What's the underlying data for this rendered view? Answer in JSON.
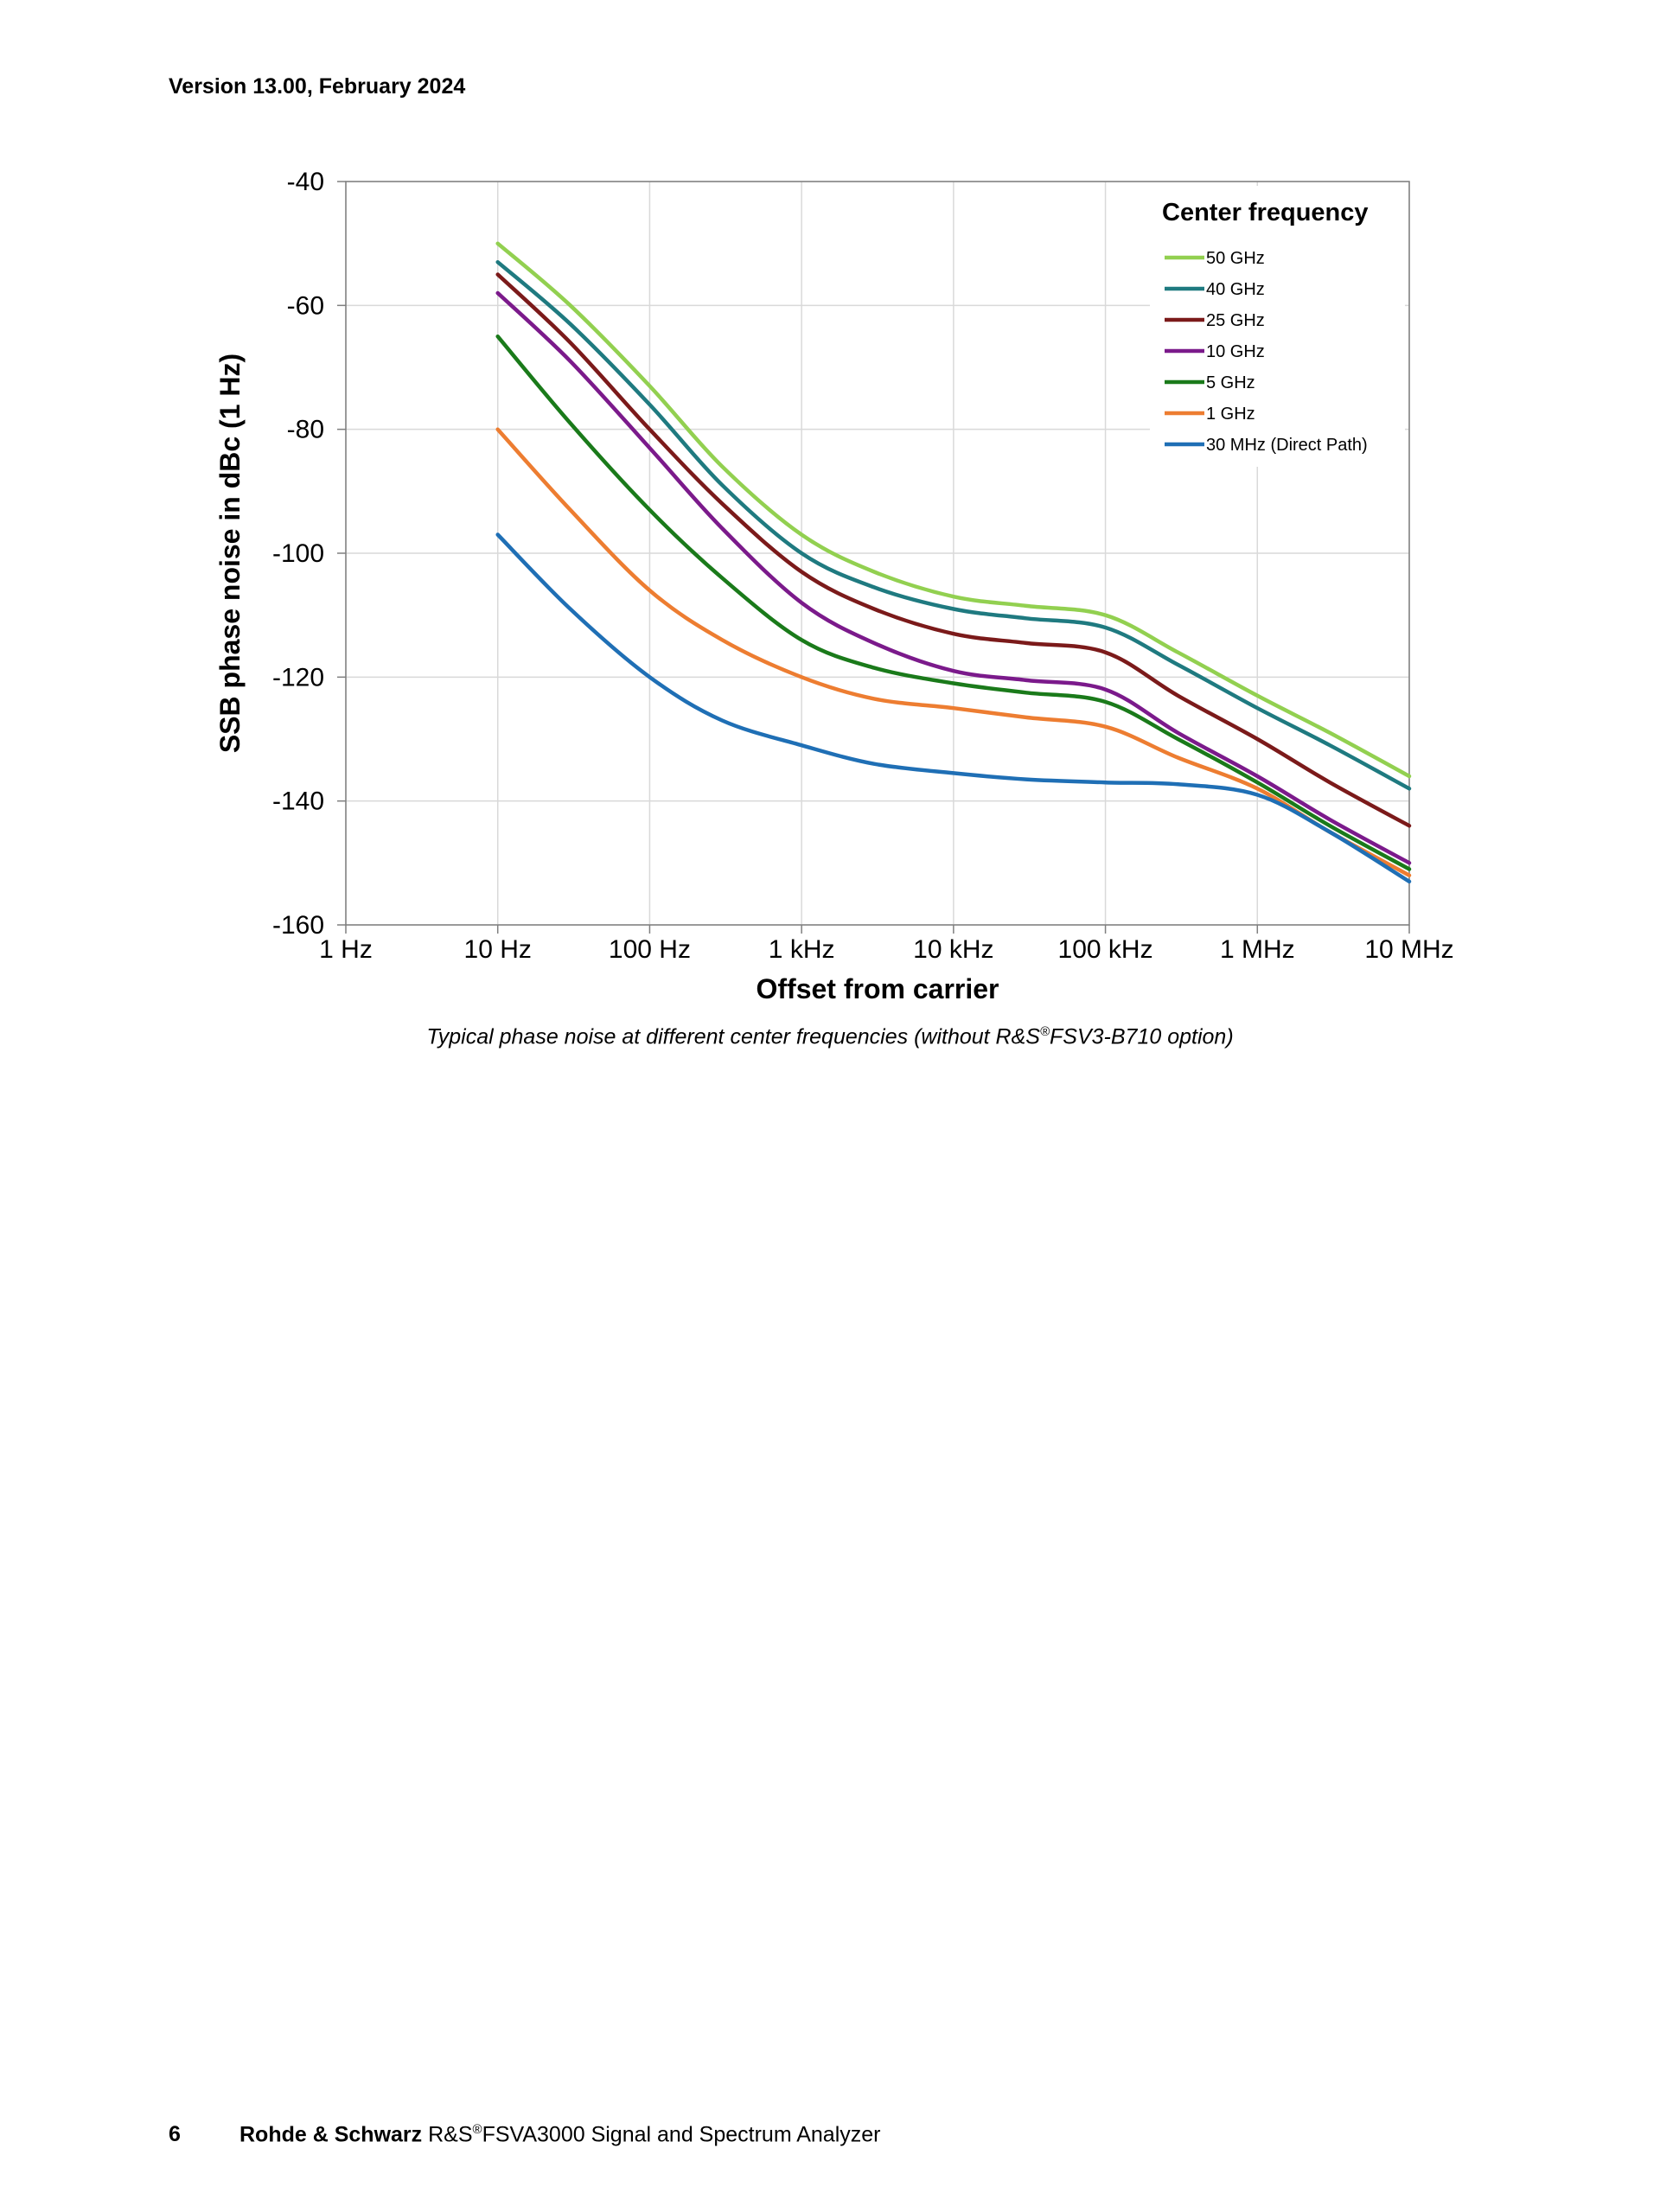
{
  "header": {
    "version": "Version 13.00, February 2024"
  },
  "chart_data": {
    "type": "line",
    "xscale": "log",
    "xlabel": "Offset from carrier",
    "ylabel": "SSB phase noise in dBc (1 Hz)",
    "xlim": [
      1,
      10000000
    ],
    "ylim": [
      -160,
      -40
    ],
    "x_ticks": [
      {
        "value": 1,
        "label": "1 Hz"
      },
      {
        "value": 10,
        "label": "10 Hz"
      },
      {
        "value": 100,
        "label": "100 Hz"
      },
      {
        "value": 1000,
        "label": "1 kHz"
      },
      {
        "value": 10000,
        "label": "10 kHz"
      },
      {
        "value": 100000,
        "label": "100 kHz"
      },
      {
        "value": 1000000,
        "label": "1 MHz"
      },
      {
        "value": 10000000,
        "label": "10 MHz"
      }
    ],
    "y_ticks": [
      {
        "value": -40,
        "label": "-40"
      },
      {
        "value": -60,
        "label": "-60"
      },
      {
        "value": -80,
        "label": "-80"
      },
      {
        "value": -100,
        "label": "-100"
      },
      {
        "value": -120,
        "label": "-120"
      },
      {
        "value": -140,
        "label": "-140"
      },
      {
        "value": -160,
        "label": "-160"
      }
    ],
    "grid": true,
    "legend": {
      "title": "Center frequency",
      "position": "top-right"
    },
    "series": [
      {
        "name": "50 GHz",
        "color": "#92d050",
        "x": [
          10,
          30,
          100,
          300,
          1000,
          3000,
          10000,
          30000,
          100000,
          300000,
          1000000,
          3000000,
          10000000
        ],
        "y": [
          -50,
          -60,
          -73,
          -86,
          -97,
          -103,
          -107,
          -108.5,
          -110,
          -116,
          -123,
          -129,
          -136
        ]
      },
      {
        "name": "40 GHz",
        "color": "#1f7a80",
        "x": [
          10,
          30,
          100,
          300,
          1000,
          3000,
          10000,
          30000,
          100000,
          300000,
          1000000,
          3000000,
          10000000
        ],
        "y": [
          -53,
          -63,
          -76,
          -89,
          -100,
          -105.5,
          -109,
          -110.5,
          -112,
          -118,
          -125,
          -131,
          -138
        ]
      },
      {
        "name": "25 GHz",
        "color": "#7b1a1a",
        "x": [
          10,
          30,
          100,
          300,
          1000,
          3000,
          10000,
          30000,
          100000,
          300000,
          1000000,
          3000000,
          10000000
        ],
        "y": [
          -55,
          -66,
          -80,
          -92,
          -103,
          -109,
          -113,
          -114.5,
          -116,
          -123,
          -130,
          -137,
          -144
        ]
      },
      {
        "name": "10 GHz",
        "color": "#7b1a8b",
        "x": [
          10,
          30,
          100,
          300,
          1000,
          3000,
          10000,
          30000,
          100000,
          300000,
          1000000,
          3000000,
          10000000
        ],
        "y": [
          -58,
          -69,
          -83,
          -96,
          -108,
          -114.5,
          -119,
          -120.5,
          -122,
          -129,
          -136,
          -143,
          -150
        ]
      },
      {
        "name": "5 GHz",
        "color": "#1a7a1a",
        "x": [
          10,
          30,
          100,
          300,
          1000,
          3000,
          10000,
          30000,
          100000,
          300000,
          1000000,
          3000000,
          10000000
        ],
        "y": [
          -65,
          -79,
          -93,
          -104,
          -114,
          -118.5,
          -121,
          -122.5,
          -124,
          -130,
          -137,
          -144,
          -151
        ]
      },
      {
        "name": "1 GHz",
        "color": "#ed7d31",
        "x": [
          10,
          30,
          100,
          300,
          1000,
          3000,
          10000,
          30000,
          100000,
          300000,
          1000000,
          3000000,
          10000000
        ],
        "y": [
          -80,
          -93,
          -106,
          -114,
          -120,
          -123.5,
          -125,
          -126.5,
          -128,
          -133,
          -138,
          -145,
          -152
        ]
      },
      {
        "name": "30 MHz (Direct Path)",
        "color": "#1f6fb5",
        "x": [
          10,
          30,
          100,
          300,
          1000,
          3000,
          10000,
          30000,
          100000,
          300000,
          1000000,
          3000000,
          10000000
        ],
        "y": [
          -97,
          -109,
          -120,
          -127,
          -131,
          -134,
          -135.5,
          -136.5,
          -137,
          -137.3,
          -139,
          -145,
          -153
        ]
      }
    ]
  },
  "caption": {
    "text": "Typical phase noise at different center frequencies (without R&S",
    "reg": "®",
    "text_after": "FSV3-B710 option)"
  },
  "footer": {
    "page": "6",
    "brand": "Rohde & Schwarz",
    "product_prefix": " R&S",
    "reg": "®",
    "product": "FSVA3000 Signal and Spectrum Analyzer"
  }
}
